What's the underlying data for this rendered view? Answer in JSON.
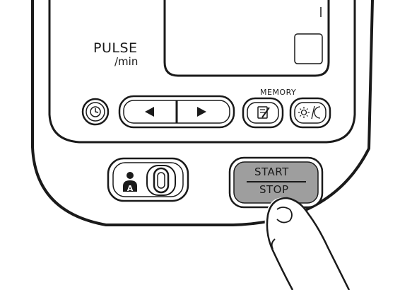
{
  "device": {
    "pulse_label": "PULSE",
    "pulse_unit": "/min",
    "memory_label": "MEMORY",
    "start_label": "START",
    "stop_label": "STOP",
    "user_select_letter": "A"
  },
  "icons": {
    "clock": "clock-icon",
    "left": "left-arrow-icon",
    "right": "right-arrow-icon",
    "memory": "memory-note-icon",
    "day_night": "sun-moon-icon",
    "user": "user-a-icon",
    "finger": "pressing-finger-icon"
  },
  "colors": {
    "outline": "#1a1a1a",
    "start_button_fill": "#9e9e9e",
    "background": "#ffffff"
  }
}
